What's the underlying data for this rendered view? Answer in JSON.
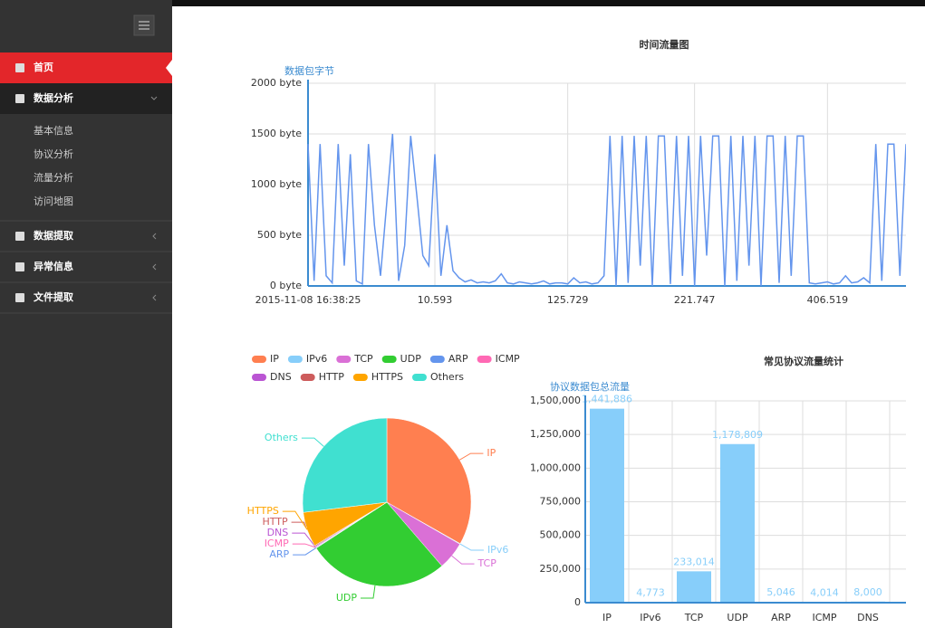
{
  "sidebar": {
    "menu": [
      {
        "label": "首页",
        "active": true
      },
      {
        "label": "数据分析",
        "children": [
          "基本信息",
          "协议分析",
          "流量分析",
          "访问地图"
        ]
      },
      {
        "label": "数据提取"
      },
      {
        "label": "异常信息"
      },
      {
        "label": "文件提取"
      }
    ]
  },
  "chart_data": [
    {
      "type": "line",
      "title": "时间流量图",
      "y_label": "数据包字节",
      "color": "#6495ed",
      "grid": true,
      "ylim": [
        0,
        2000
      ],
      "yticks": [
        {
          "value": 0,
          "label": "0 byte"
        },
        {
          "value": 500,
          "label": "500 byte"
        },
        {
          "value": 1000,
          "label": "1000 byte"
        },
        {
          "value": 1500,
          "label": "1500 byte"
        },
        {
          "value": 2000,
          "label": "2000 byte"
        }
      ],
      "categories": [
        "2015-11-08 16:38:25",
        null,
        null,
        null,
        null,
        null,
        null,
        null,
        null,
        null,
        null,
        null,
        null,
        null,
        null,
        null,
        null,
        null,
        null,
        null,
        null,
        "10.593",
        null,
        null,
        null,
        null,
        null,
        null,
        null,
        null,
        null,
        null,
        null,
        null,
        null,
        null,
        null,
        null,
        null,
        null,
        null,
        null,
        null,
        "125.729",
        null,
        null,
        null,
        null,
        null,
        null,
        null,
        null,
        null,
        null,
        null,
        null,
        null,
        null,
        null,
        null,
        null,
        null,
        null,
        null,
        "221.747",
        null,
        null,
        null,
        null,
        null,
        null,
        null,
        null,
        null,
        null,
        null,
        null,
        null,
        null,
        null,
        null,
        null,
        null,
        null,
        null,
        null,
        "406.519",
        null,
        null,
        null,
        null,
        null,
        null,
        null,
        null,
        null,
        null,
        null,
        null,
        null
      ],
      "values": [
        1400,
        50,
        1400,
        100,
        30,
        1400,
        200,
        1300,
        50,
        20,
        1400,
        600,
        100,
        800,
        1500,
        50,
        400,
        1480,
        900,
        300,
        200,
        1300,
        100,
        600,
        150,
        80,
        40,
        60,
        30,
        40,
        30,
        50,
        120,
        30,
        20,
        40,
        30,
        20,
        30,
        50,
        20,
        30,
        30,
        20,
        80,
        30,
        40,
        20,
        30,
        100,
        1480,
        0,
        1480,
        30,
        1480,
        200,
        1480,
        0,
        1480,
        1480,
        20,
        1480,
        100,
        1480,
        0,
        1480,
        300,
        1480,
        1480,
        0,
        1480,
        50,
        1480,
        200,
        1480,
        0,
        1480,
        1480,
        30,
        1480,
        100,
        1480,
        1480,
        30,
        20,
        30,
        40,
        20,
        30,
        100,
        30,
        40,
        80,
        30,
        1400,
        50,
        1400,
        1400,
        100,
        1400
      ]
    },
    {
      "type": "pie",
      "legend": "top-left",
      "categories": [
        "IP",
        "IPv6",
        "TCP",
        "UDP",
        "ARP",
        "ICMP",
        "DNS",
        "HTTP",
        "HTTPS",
        "Others"
      ],
      "values": [
        1441886,
        4773,
        233014,
        1178809,
        5046,
        4014,
        8000,
        8000,
        290000,
        1170000
      ],
      "colors": [
        "#ff7f50",
        "#87cefa",
        "#da70d6",
        "#32cd32",
        "#6495ed",
        "#ff69b4",
        "#ba55d3",
        "#cd5c5c",
        "#ffa500",
        "#40e0d0"
      ]
    },
    {
      "type": "bar",
      "title": "常见协议流量统计",
      "y_label": "协议数据包总流量",
      "color": "#87cefa",
      "grid": true,
      "ylim": [
        0,
        1500000
      ],
      "yticks": [
        0,
        {
          "value": 250000,
          "label": "250,000"
        },
        {
          "value": 500000,
          "label": "500,000"
        },
        {
          "value": 750000,
          "label": "750,000"
        },
        {
          "value": 1000000,
          "label": "1,000,000"
        },
        {
          "value": 1250000,
          "label": "1,250,000"
        },
        {
          "value": 1500000,
          "label": "1,500,000"
        }
      ],
      "categories": [
        "IP",
        "IPv6",
        "TCP",
        "UDP",
        "ARP",
        "ICMP",
        "DNS"
      ],
      "values": [
        1441886,
        4773,
        233014,
        1178809,
        5046,
        4014,
        8000
      ],
      "value_labels": [
        "1,441,886",
        "4,773",
        "233,014",
        "1,178,809",
        "5,046",
        "4,014",
        "8,000"
      ]
    }
  ]
}
